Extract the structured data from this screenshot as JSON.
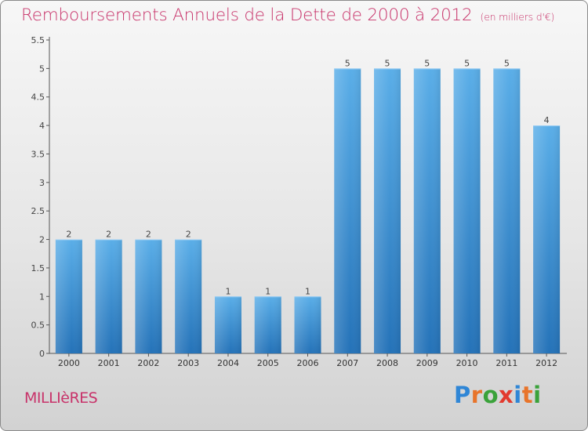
{
  "header": {
    "title": "Remboursements Annuels de la Dette de 2000 à 2012",
    "subtitle": "(en milliers d'€)"
  },
  "footer": {
    "commune": "MILLIèRES",
    "logo_letters": [
      "P",
      "r",
      "o",
      "x",
      "i",
      "t",
      "i"
    ],
    "logo_colors": [
      "#2f86d6",
      "#e8742a",
      "#3aa23a",
      "#e23a2e",
      "#2f86d6",
      "#e8742a",
      "#3aa23a"
    ]
  },
  "colors": {
    "bar": "#3b95dc",
    "title": "#c8336a"
  },
  "chart_data": {
    "type": "bar",
    "categories": [
      "2000",
      "2001",
      "2002",
      "2003",
      "2004",
      "2005",
      "2006",
      "2007",
      "2008",
      "2009",
      "2010",
      "2011",
      "2012"
    ],
    "values": [
      2,
      2,
      2,
      2,
      1,
      1,
      1,
      5,
      5,
      5,
      5,
      5,
      4
    ],
    "data_labels": [
      "2",
      "2",
      "2",
      "2",
      "1",
      "1",
      "1",
      "5",
      "5",
      "5",
      "5",
      "5",
      "4"
    ],
    "title": "Remboursements Annuels de la Dette de 2000 à 2012",
    "ylim": [
      0,
      5.5
    ],
    "yticks": [
      0,
      0.5,
      1,
      1.5,
      2,
      2.5,
      3,
      3.5,
      4,
      4.5,
      5,
      5.5
    ],
    "ytick_labels": [
      "0",
      "0.5",
      "1",
      "1.5",
      "2",
      "2.5",
      "3",
      "3.5",
      "4",
      "4.5",
      "5",
      "5.5"
    ],
    "grid": false,
    "legend": "none"
  }
}
